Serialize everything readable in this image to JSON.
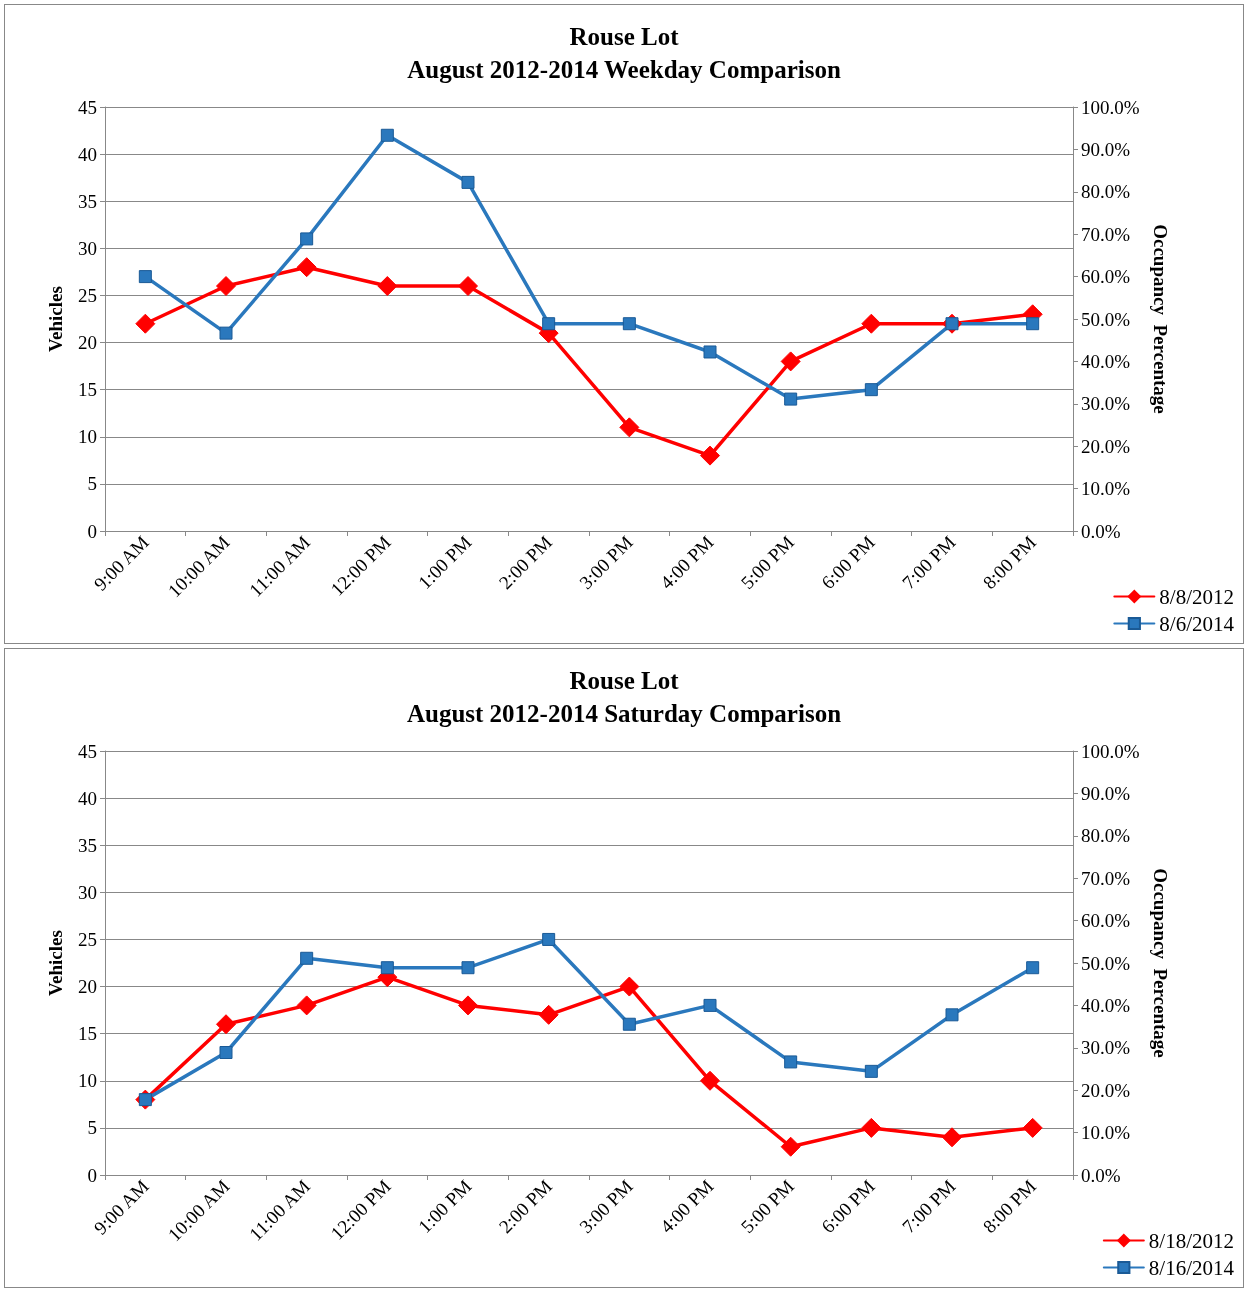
{
  "chart_data": [
    {
      "type": "line",
      "title": "Rouse Lot",
      "subtitle": "August 2012-2014 Weekday Comparison",
      "ylabel": "Vehicles",
      "y2label": "Occupancy  Percentage",
      "categories": [
        "9:00 AM",
        "10:00 AM",
        "11:00 AM",
        "12:00 PM",
        "1:00 PM",
        "2:00 PM",
        "3:00 PM",
        "4:00 PM",
        "5:00 PM",
        "6:00 PM",
        "7:00 PM",
        "8:00 PM"
      ],
      "series": [
        {
          "name": "8/8/2012",
          "color": "#ff0000",
          "marker": "diamond",
          "values": [
            22,
            26,
            28,
            26,
            26,
            21,
            11,
            8,
            18,
            22,
            22,
            23
          ]
        },
        {
          "name": "8/6/2014",
          "color": "#2a78bd",
          "marker": "square",
          "values": [
            27,
            21,
            31,
            42,
            37,
            22,
            22,
            19,
            14,
            15,
            22,
            22
          ]
        }
      ],
      "ylim": [
        0,
        45
      ],
      "yticks": [
        0,
        5,
        10,
        15,
        20,
        25,
        30,
        35,
        40,
        45
      ],
      "y2lim": [
        0,
        100
      ],
      "y2ticks": [
        {
          "value": 0,
          "label": "0.0%"
        },
        {
          "value": 10,
          "label": "10.0%"
        },
        {
          "value": 20,
          "label": "20.0%"
        },
        {
          "value": 30,
          "label": "30.0%"
        },
        {
          "value": 40,
          "label": "40.0%"
        },
        {
          "value": 50,
          "label": "50.0%"
        },
        {
          "value": 60,
          "label": "60.0%"
        },
        {
          "value": 70,
          "label": "70.0%"
        },
        {
          "value": 80,
          "label": "80.0%"
        },
        {
          "value": 90,
          "label": "90.0%"
        },
        {
          "value": 100,
          "label": "100.0%"
        }
      ],
      "grid": "y",
      "legend": "bottom right",
      "line_style": "solid"
    },
    {
      "type": "line",
      "title": "Rouse Lot",
      "subtitle": "August 2012-2014 Saturday Comparison",
      "ylabel": "Vehicles",
      "y2label": "Occupancy  Percentage",
      "categories": [
        "9:00 AM",
        "10:00 AM",
        "11:00 AM",
        "12:00 PM",
        "1:00 PM",
        "2:00 PM",
        "3:00 PM",
        "4:00 PM",
        "5:00 PM",
        "6:00 PM",
        "7:00 PM",
        "8:00 PM"
      ],
      "series": [
        {
          "name": "8/18/2012",
          "color": "#ff0000",
          "marker": "diamond",
          "values": [
            8,
            16,
            18,
            21,
            18,
            17,
            20,
            10,
            3,
            5,
            4,
            5
          ]
        },
        {
          "name": "8/16/2014",
          "color": "#2a78bd",
          "marker": "square",
          "values": [
            8,
            13,
            23,
            22,
            22,
            25,
            16,
            18,
            12,
            11,
            17,
            22
          ]
        }
      ],
      "ylim": [
        0,
        45
      ],
      "yticks": [
        0,
        5,
        10,
        15,
        20,
        25,
        30,
        35,
        40,
        45
      ],
      "y2lim": [
        0,
        100
      ],
      "y2ticks": [
        {
          "value": 0,
          "label": "0.0%"
        },
        {
          "value": 10,
          "label": "10.0%"
        },
        {
          "value": 20,
          "label": "20.0%"
        },
        {
          "value": 30,
          "label": "30.0%"
        },
        {
          "value": 40,
          "label": "40.0%"
        },
        {
          "value": 50,
          "label": "50.0%"
        },
        {
          "value": 60,
          "label": "60.0%"
        },
        {
          "value": 70,
          "label": "70.0%"
        },
        {
          "value": 80,
          "label": "80.0%"
        },
        {
          "value": 90,
          "label": "90.0%"
        },
        {
          "value": 100,
          "label": "100.0%"
        }
      ],
      "grid": "y",
      "legend": "bottom right",
      "line_style": "solid"
    }
  ]
}
